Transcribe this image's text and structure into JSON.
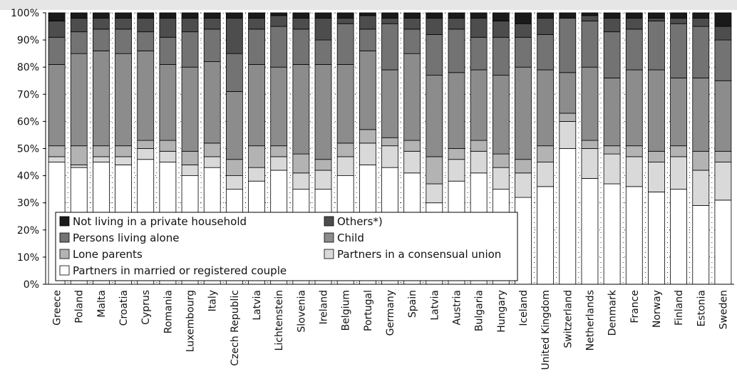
{
  "chart_data": {
    "type": "bar",
    "stacked": true,
    "percent": true,
    "categories": [
      "Greece",
      "Poland",
      "Malta",
      "Croatia",
      "Cyprus",
      "Romania",
      "Luxembourg",
      "Italy",
      "Czech Republic",
      "Latvia",
      "Lichtenstein",
      "Slovenia",
      "Ireland",
      "Belgium",
      "Portugal",
      "Germany",
      "Spain",
      "Latvia",
      "Austria",
      "Bulgaria",
      "Hungary",
      "Iceland",
      "United Kingdom",
      "Switzerland",
      "Netherlands",
      "Denmark",
      "France",
      "Norway",
      "Finland",
      "Estonia",
      "Sweden"
    ],
    "series": [
      {
        "name": "Partners in married or registered couple",
        "color": "#ffffff",
        "values": [
          45,
          43,
          45,
          44,
          46,
          45,
          40,
          43,
          35,
          38,
          42,
          35,
          35,
          40,
          44,
          43,
          41,
          30,
          38,
          41,
          35,
          32,
          36,
          50,
          39,
          37,
          36,
          34,
          35,
          29,
          31
        ]
      },
      {
        "name": "Partners in a consensual union",
        "color": "#d9d9d9",
        "values": [
          2,
          1,
          2,
          3,
          4,
          4,
          4,
          4,
          5,
          5,
          5,
          6,
          7,
          7,
          8,
          8,
          8,
          7,
          8,
          8,
          8,
          9,
          9,
          10,
          11,
          11,
          11,
          11,
          12,
          13,
          14
        ]
      },
      {
        "name": "Lone parents",
        "color": "#b3b3b3",
        "values": [
          4,
          7,
          4,
          4,
          3,
          4,
          5,
          5,
          6,
          8,
          4,
          7,
          4,
          5,
          5,
          3,
          4,
          10,
          4,
          4,
          5,
          5,
          6,
          3,
          3,
          3,
          4,
          4,
          4,
          7,
          4
        ]
      },
      {
        "name": "Child",
        "color": "#8c8c8c",
        "values": [
          30,
          34,
          35,
          34,
          33,
          28,
          31,
          30,
          25,
          30,
          29,
          33,
          35,
          29,
          29,
          25,
          32,
          30,
          28,
          26,
          29,
          34,
          28,
          15,
          27,
          25,
          28,
          30,
          25,
          27,
          26
        ]
      },
      {
        "name": "Persons living alone",
        "color": "#737373",
        "values": [
          10,
          8,
          8,
          9,
          7,
          10,
          13,
          12,
          14,
          13,
          15,
          13,
          9,
          15,
          8,
          17,
          9,
          15,
          16,
          12,
          14,
          11,
          13,
          20,
          17,
          17,
          15,
          18,
          20,
          19,
          15
        ]
      },
      {
        "name": "Others*)",
        "color": "#4d4d4d",
        "values": [
          6,
          5,
          4,
          4,
          5,
          7,
          5,
          4,
          13,
          4,
          4,
          4,
          8,
          2,
          5,
          2,
          4,
          6,
          4,
          7,
          6,
          5,
          6,
          0,
          2,
          5,
          4,
          1,
          2,
          3,
          5
        ]
      },
      {
        "name": "Not living in a private household",
        "color": "#1a1a1a",
        "values": [
          3,
          2,
          2,
          2,
          2,
          2,
          2,
          2,
          2,
          2,
          1,
          2,
          2,
          2,
          1,
          2,
          2,
          2,
          2,
          2,
          3,
          4,
          2,
          2,
          1,
          2,
          2,
          2,
          2,
          2,
          5
        ]
      }
    ],
    "y_ticks": [
      "0%",
      "10%",
      "20%",
      "30%",
      "40%",
      "50%",
      "60%",
      "70%",
      "80%",
      "90%",
      "100%"
    ],
    "ylim": [
      0,
      100
    ],
    "grid": true,
    "legend": {
      "placement": "bottom-left inside",
      "entries": [
        {
          "label": "Not living in a private household",
          "color": "#1a1a1a"
        },
        {
          "label": "Others*)",
          "color": "#4d4d4d"
        },
        {
          "label": "Persons living alone",
          "color": "#737373"
        },
        {
          "label": "Child",
          "color": "#8c8c8c"
        },
        {
          "label": "Lone parents",
          "color": "#b3b3b3"
        },
        {
          "label": "Partners in a consensual union",
          "color": "#d9d9d9"
        },
        {
          "label": "Partners in married or registered couple",
          "color": "#ffffff"
        }
      ]
    }
  }
}
